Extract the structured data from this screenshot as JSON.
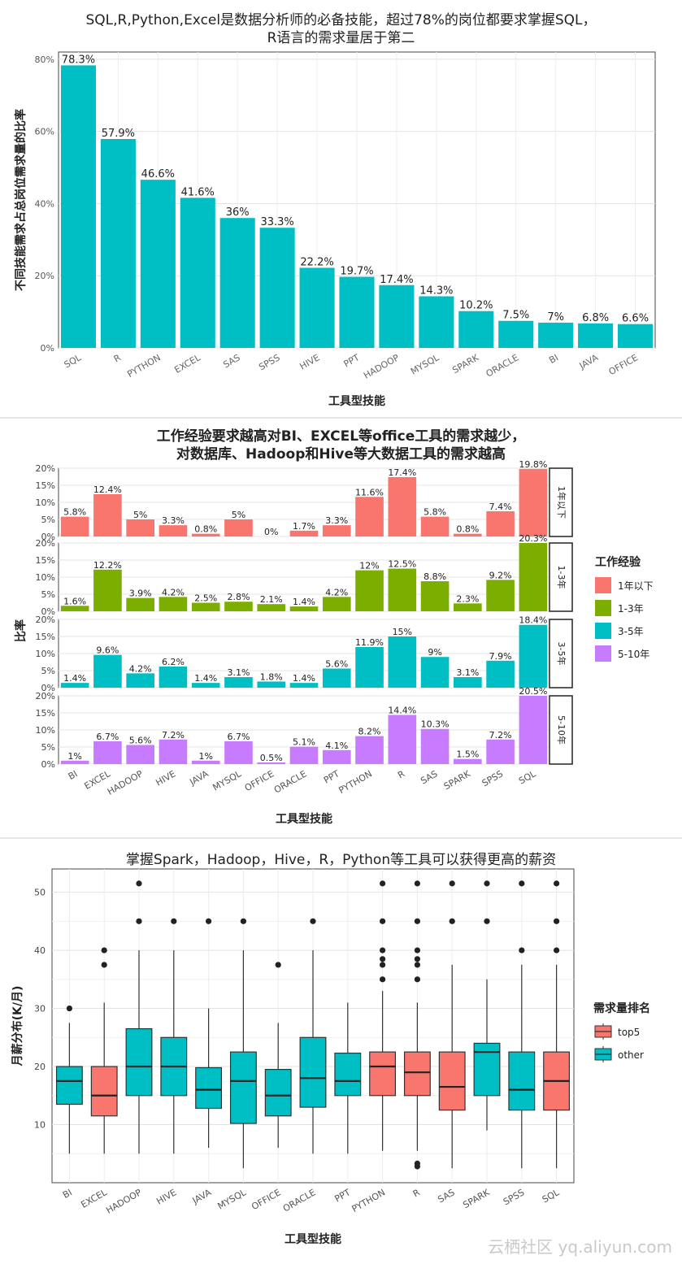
{
  "page": {
    "watermark": "云栖社区 yq.aliyun.com"
  },
  "chart_data": [
    {
      "type": "bar",
      "title": "SQL,R,Python,Excel是数据分析师的必备技能，超过78%的岗位都要求掌握SQL，",
      "subtitle": "R语言的需求量居于第二",
      "xlabel": "工具型技能",
      "ylabel": "不同技能需求占总岗位需求量的比率",
      "ylim": [
        0,
        0.82
      ],
      "yticks": [
        0,
        0.2,
        0.4,
        0.6,
        0.8
      ],
      "yticklabels": [
        "0%",
        "20%",
        "40%",
        "60%",
        "80%"
      ],
      "categories": [
        "SQL",
        "R",
        "PYTHON",
        "EXCEL",
        "SAS",
        "SPSS",
        "HIVE",
        "PPT",
        "HADOOP",
        "MYSQL",
        "SPARK",
        "ORACLE",
        "BI",
        "JAVA",
        "OFFICE"
      ],
      "values": [
        0.783,
        0.579,
        0.466,
        0.416,
        0.36,
        0.333,
        0.222,
        0.197,
        0.174,
        0.143,
        0.102,
        0.075,
        0.07,
        0.068,
        0.066
      ],
      "labels": [
        "78.3%",
        "57.9%",
        "46.6%",
        "41.6%",
        "36%",
        "33.3%",
        "22.2%",
        "19.7%",
        "17.4%",
        "14.3%",
        "10.2%",
        "7.5%",
        "7%",
        "6.8%",
        "6.6%"
      ],
      "color": "#00BFC4",
      "grid": true
    },
    {
      "type": "bar",
      "title": "工作经验要求越高对BI、EXCEL等office工具的需求越少，",
      "subtitle": "对数据库、Hadoop和Hive等大数据工具的需求越高",
      "xlabel": "工具型技能",
      "ylabel": "比率",
      "legend_title": "工作经验",
      "legend_position": "right",
      "ylim": [
        0,
        0.2
      ],
      "yticks": [
        0,
        0.05,
        0.1,
        0.15,
        0.2
      ],
      "yticklabels": [
        "0%",
        "5%",
        "10%",
        "15%",
        "20%"
      ],
      "categories": [
        "BI",
        "EXCEL",
        "HADOOP",
        "HIVE",
        "JAVA",
        "MYSQL",
        "OFFICE",
        "ORACLE",
        "PPT",
        "PYTHON",
        "R",
        "SAS",
        "SPARK",
        "SPSS",
        "SQL"
      ],
      "series": [
        {
          "name": "1年以下",
          "strip": "1年以下",
          "color": "#F8766D",
          "values": [
            0.058,
            0.124,
            0.05,
            0.033,
            0.008,
            0.05,
            0.0,
            0.017,
            0.033,
            0.116,
            0.174,
            0.058,
            0.008,
            0.074,
            0.198
          ],
          "labels": [
            "5.8%",
            "12.4%",
            "5%",
            "3.3%",
            "0.8%",
            "5%",
            "0%",
            "1.7%",
            "3.3%",
            "11.6%",
            "17.4%",
            "5.8%",
            "0.8%",
            "7.4%",
            "19.8%"
          ]
        },
        {
          "name": "1-3年",
          "strip": "1-3年",
          "color": "#7CAE00",
          "values": [
            0.016,
            0.122,
            0.039,
            0.042,
            0.025,
            0.028,
            0.021,
            0.014,
            0.042,
            0.12,
            0.125,
            0.088,
            0.023,
            0.092,
            0.203
          ],
          "labels": [
            "1.6%",
            "12.2%",
            "3.9%",
            "4.2%",
            "2.5%",
            "2.8%",
            "2.1%",
            "1.4%",
            "4.2%",
            "12%",
            "12.5%",
            "8.8%",
            "2.3%",
            "9.2%",
            "20.3%"
          ]
        },
        {
          "name": "3-5年",
          "strip": "3-5年",
          "color": "#00BFC4",
          "values": [
            0.014,
            0.096,
            0.042,
            0.062,
            0.014,
            0.031,
            0.018,
            0.014,
            0.056,
            0.119,
            0.15,
            0.09,
            0.031,
            0.079,
            0.184
          ],
          "labels": [
            "1.4%",
            "9.6%",
            "4.2%",
            "6.2%",
            "1.4%",
            "3.1%",
            "1.8%",
            "1.4%",
            "5.6%",
            "11.9%",
            "15%",
            "9%",
            "3.1%",
            "7.9%",
            "18.4%"
          ]
        },
        {
          "name": "5-10年",
          "strip": "5-10年",
          "color": "#C77CFF",
          "values": [
            0.01,
            0.067,
            0.056,
            0.072,
            0.01,
            0.067,
            0.005,
            0.051,
            0.041,
            0.082,
            0.144,
            0.103,
            0.015,
            0.072,
            0.205
          ],
          "labels": [
            "1%",
            "6.7%",
            "5.6%",
            "7.2%",
            "1%",
            "6.7%",
            "0.5%",
            "5.1%",
            "4.1%",
            "8.2%",
            "14.4%",
            "10.3%",
            "1.5%",
            "7.2%",
            "20.5%"
          ]
        }
      ]
    },
    {
      "type": "boxplot",
      "title": "掌握Spark，Hadoop，Hive，R，Python等工具可以获得更高的薪资",
      "xlabel": "工具型技能",
      "ylabel": "月薪分布(K/月)",
      "legend_title": "需求量排名",
      "legend_position": "right",
      "ylim": [
        0,
        54
      ],
      "yticks": [
        10,
        20,
        30,
        40,
        50
      ],
      "groups": [
        {
          "name": "top5",
          "color": "#F8766D"
        },
        {
          "name": "other",
          "color": "#00BFC4"
        }
      ],
      "categories": [
        "BI",
        "EXCEL",
        "HADOOP",
        "HIVE",
        "JAVA",
        "MYSQL",
        "OFFICE",
        "ORACLE",
        "PPT",
        "PYTHON",
        "R",
        "SAS",
        "SPARK",
        "SPSS",
        "SQL"
      ],
      "boxes": [
        {
          "group": "other",
          "lower": 5,
          "q1": 13.5,
          "median": 17.5,
          "q3": 20,
          "upper": 27.5,
          "outliers": [
            30
          ]
        },
        {
          "group": "top5",
          "lower": 5,
          "q1": 11.5,
          "median": 15,
          "q3": 20,
          "upper": 31,
          "outliers": [
            37.5,
            40
          ]
        },
        {
          "group": "other",
          "lower": 5,
          "q1": 15,
          "median": 20,
          "q3": 26.5,
          "upper": 40,
          "outliers": [
            45,
            51.5
          ]
        },
        {
          "group": "other",
          "lower": 5,
          "q1": 15,
          "median": 20,
          "q3": 25,
          "upper": 40,
          "outliers": [
            45
          ]
        },
        {
          "group": "other",
          "lower": 6,
          "q1": 12.8,
          "median": 16,
          "q3": 19.8,
          "upper": 30,
          "outliers": [
            45
          ]
        },
        {
          "group": "other",
          "lower": 2.5,
          "q1": 10.2,
          "median": 17.5,
          "q3": 22.5,
          "upper": 40,
          "outliers": [
            45
          ]
        },
        {
          "group": "other",
          "lower": 6,
          "q1": 11.5,
          "median": 15,
          "q3": 19.5,
          "upper": 27.5,
          "outliers": [
            37.5
          ]
        },
        {
          "group": "other",
          "lower": 5,
          "q1": 13,
          "median": 18,
          "q3": 25,
          "upper": 40,
          "outliers": [
            45
          ]
        },
        {
          "group": "other",
          "lower": 5,
          "q1": 15,
          "median": 17.5,
          "q3": 22.3,
          "upper": 31,
          "outliers": []
        },
        {
          "group": "top5",
          "lower": 5.5,
          "q1": 15,
          "median": 20,
          "q3": 22.5,
          "upper": 33,
          "outliers": [
            35,
            37.5,
            38.5,
            40,
            45,
            51.5
          ]
        },
        {
          "group": "top5",
          "lower": 5.5,
          "q1": 15,
          "median": 19,
          "q3": 22.5,
          "upper": 31,
          "outliers": [
            2.8,
            3.3,
            35,
            37.5,
            38.5,
            40,
            45,
            51.5
          ]
        },
        {
          "group": "top5",
          "lower": 2.5,
          "q1": 12.5,
          "median": 16.5,
          "q3": 22.5,
          "upper": 37.5,
          "outliers": [
            45,
            51.5
          ]
        },
        {
          "group": "other",
          "lower": 9,
          "q1": 15,
          "median": 22.5,
          "q3": 24,
          "upper": 35,
          "outliers": [
            45,
            51.5
          ]
        },
        {
          "group": "other",
          "lower": 2.5,
          "q1": 12.5,
          "median": 16,
          "q3": 22.5,
          "upper": 37.5,
          "outliers": [
            40,
            51.5
          ]
        },
        {
          "group": "top5",
          "lower": 2.5,
          "q1": 12.5,
          "median": 17.5,
          "q3": 22.5,
          "upper": 37.5,
          "outliers": [
            40,
            45,
            51.5
          ]
        }
      ]
    }
  ]
}
